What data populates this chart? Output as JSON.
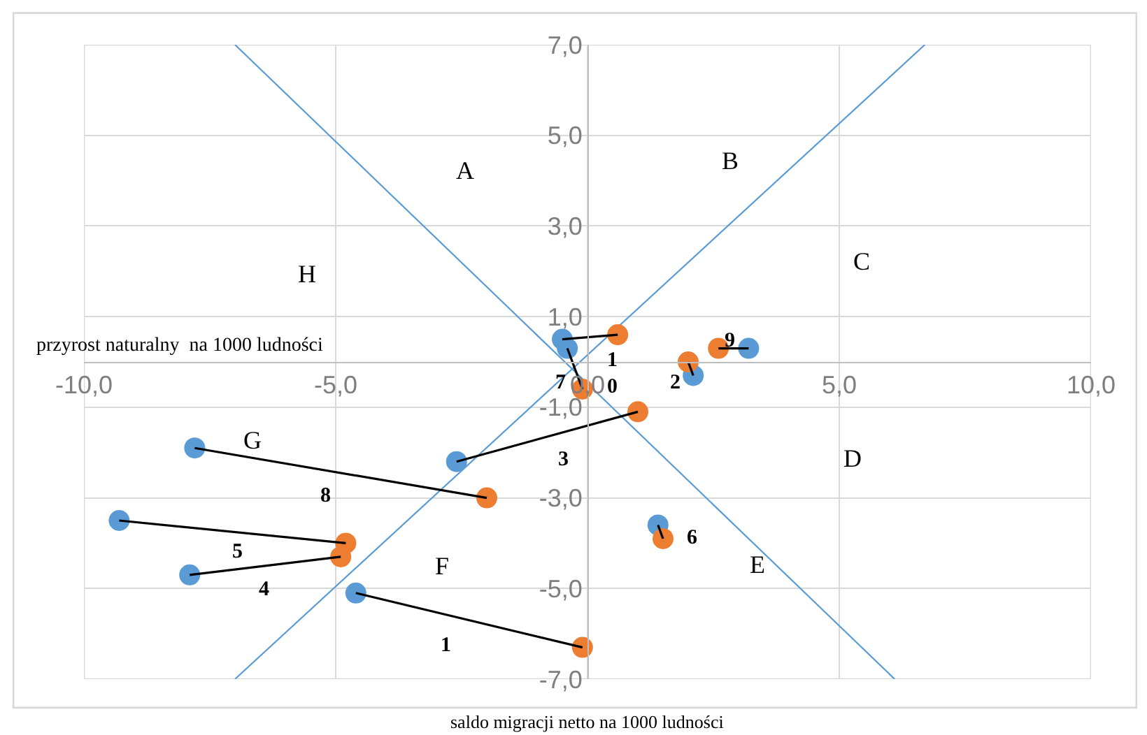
{
  "chart_data": {
    "type": "scatter",
    "xlabel": "saldo migracji netto na 1000 ludności",
    "ylabel": "przyrost naturalny  na 1000 ludności",
    "xlim": [
      -10,
      10
    ],
    "ylim": [
      -7,
      7
    ],
    "xticks": [
      {
        "value": -10,
        "label": "-10,0"
      },
      {
        "value": -5,
        "label": "-5,0"
      },
      {
        "value": 0,
        "label": "0,0"
      },
      {
        "value": 5,
        "label": "5,0"
      },
      {
        "value": 10,
        "label": "10,0"
      }
    ],
    "yticks": [
      {
        "value": -7,
        "label": "-7,0"
      },
      {
        "value": -5,
        "label": "-5,0"
      },
      {
        "value": -3,
        "label": "-3,0"
      },
      {
        "value": -1,
        "label": "-1,0"
      },
      {
        "value": 1,
        "label": "1,0"
      },
      {
        "value": 3,
        "label": "3,0"
      },
      {
        "value": 5,
        "label": "5,0"
      },
      {
        "value": 7,
        "label": "7,0"
      }
    ],
    "grid": true,
    "series": [
      {
        "type": "line",
        "color": "#5b9bd5",
        "x": [
          -7.0,
          6.1
        ],
        "values": [
          7.0,
          -7.0
        ]
      },
      {
        "type": "line",
        "color": "#5b9bd5",
        "x": [
          -7.0,
          6.7
        ],
        "values": [
          -7.0,
          7.0
        ]
      },
      {
        "color": "#5b9bd5",
        "marker": "circle",
        "x": [
          -0.5,
          -0.4,
          2.1,
          3.2,
          -2.6,
          -7.8,
          -9.3,
          -7.9,
          -4.6,
          1.4
        ],
        "values": [
          0.5,
          0.3,
          -0.3,
          0.3,
          -2.2,
          -1.9,
          -3.5,
          -4.7,
          -5.1,
          -3.6
        ]
      },
      {
        "color": "#ed7d31",
        "marker": "circle",
        "x": [
          0.6,
          -0.1,
          2.0,
          2.6,
          1.0,
          -2.0,
          -4.8,
          -4.9,
          -0.1,
          1.5
        ],
        "values": [
          0.6,
          -0.6,
          0.0,
          0.3,
          -1.1,
          -3.0,
          -4.0,
          -4.3,
          -6.3,
          -3.9
        ]
      },
      {
        "type": "line",
        "color": "#000000",
        "x": [
          -0.5,
          0.6
        ],
        "values": [
          0.5,
          0.6
        ]
      },
      {
        "type": "line",
        "color": "#000000",
        "x": [
          -0.4,
          -0.1
        ],
        "values": [
          0.3,
          -0.6
        ]
      },
      {
        "type": "line",
        "color": "#000000",
        "x": [
          2.1,
          2.0
        ],
        "values": [
          -0.3,
          0.0
        ]
      },
      {
        "type": "line",
        "color": "#000000",
        "x": [
          2.6,
          3.2
        ],
        "values": [
          0.3,
          0.3
        ]
      },
      {
        "type": "line",
        "color": "#000000",
        "x": [
          -2.6,
          1.0
        ],
        "values": [
          -2.2,
          -1.1
        ]
      },
      {
        "type": "line",
        "color": "#000000",
        "x": [
          -7.8,
          -2.0
        ],
        "values": [
          -1.9,
          -3.0
        ]
      },
      {
        "type": "line",
        "color": "#000000",
        "x": [
          -9.3,
          -4.8
        ],
        "values": [
          -3.5,
          -4.0
        ]
      },
      {
        "type": "line",
        "color": "#000000",
        "x": [
          -7.9,
          -4.9
        ],
        "values": [
          -4.7,
          -4.3
        ]
      },
      {
        "type": "line",
        "color": "#000000",
        "x": [
          -4.6,
          -0.1
        ],
        "values": [
          -5.1,
          -6.3
        ]
      },
      {
        "type": "line",
        "color": "#000000",
        "x": [
          1.4,
          1.5
        ],
        "values": [
          -3.6,
          -3.9
        ]
      }
    ],
    "annotations": [
      "A",
      "B",
      "C",
      "H",
      "G",
      "D",
      "E",
      "F",
      "1",
      "7",
      "0",
      "2",
      "9",
      "3",
      "8",
      "5",
      "4",
      "1",
      "6"
    ]
  }
}
